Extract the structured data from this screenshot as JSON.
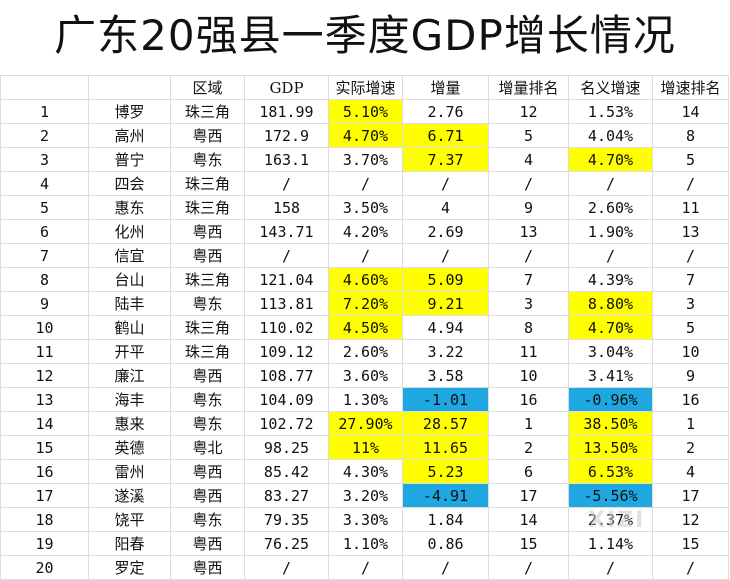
{
  "title": "广东20强县一季度GDP增长情况",
  "headers": [
    "",
    "",
    "区域",
    "GDP",
    "实际增速",
    "增量",
    "增量排名",
    "名义增速",
    "增速排名"
  ],
  "rows": [
    [
      "1",
      "博罗",
      "珠三角",
      "181.99",
      "5.10%",
      "2.76",
      "12",
      "1.53%",
      "14"
    ],
    [
      "2",
      "高州",
      "粤西",
      "172.9",
      "4.70%",
      "6.71",
      "5",
      "4.04%",
      "8"
    ],
    [
      "3",
      "普宁",
      "粤东",
      "163.1",
      "3.70%",
      "7.37",
      "4",
      "4.70%",
      "5"
    ],
    [
      "4",
      "四会",
      "珠三角",
      "/",
      "/",
      "/",
      "/",
      "/",
      "/"
    ],
    [
      "5",
      "惠东",
      "珠三角",
      "158",
      "3.50%",
      "4",
      "9",
      "2.60%",
      "11"
    ],
    [
      "6",
      "化州",
      "粤西",
      "143.71",
      "4.20%",
      "2.69",
      "13",
      "1.90%",
      "13"
    ],
    [
      "7",
      "信宜",
      "粤西",
      "/",
      "/",
      "/",
      "/",
      "/",
      "/"
    ],
    [
      "8",
      "台山",
      "珠三角",
      "121.04",
      "4.60%",
      "5.09",
      "7",
      "4.39%",
      "7"
    ],
    [
      "9",
      "陆丰",
      "粤东",
      "113.81",
      "7.20%",
      "9.21",
      "3",
      "8.80%",
      "3"
    ],
    [
      "10",
      "鹤山",
      "珠三角",
      "110.02",
      "4.50%",
      "4.94",
      "8",
      "4.70%",
      "5"
    ],
    [
      "11",
      "开平",
      "珠三角",
      "109.12",
      "2.60%",
      "3.22",
      "11",
      "3.04%",
      "10"
    ],
    [
      "12",
      "廉江",
      "粤西",
      "108.77",
      "3.60%",
      "3.58",
      "10",
      "3.41%",
      "9"
    ],
    [
      "13",
      "海丰",
      "粤东",
      "104.09",
      "1.30%",
      "-1.01",
      "16",
      "-0.96%",
      "16"
    ],
    [
      "14",
      "惠来",
      "粤东",
      "102.72",
      "27.90%",
      "28.57",
      "1",
      "38.50%",
      "1"
    ],
    [
      "15",
      "英德",
      "粤北",
      "98.25",
      "11%",
      "11.65",
      "2",
      "13.50%",
      "2"
    ],
    [
      "16",
      "雷州",
      "粤西",
      "85.42",
      "4.30%",
      "5.23",
      "6",
      "6.53%",
      "4"
    ],
    [
      "17",
      "遂溪",
      "粤西",
      "83.27",
      "3.20%",
      "-4.91",
      "17",
      "-5.56%",
      "17"
    ],
    [
      "18",
      "饶平",
      "粤东",
      "79.35",
      "3.30%",
      "1.84",
      "14",
      "2.37%",
      "12"
    ],
    [
      "19",
      "阳春",
      "粤西",
      "76.25",
      "1.10%",
      "0.86",
      "15",
      "1.14%",
      "15"
    ],
    [
      "20",
      "罗定",
      "粤西",
      "/",
      "/",
      "/",
      "/",
      "/",
      "/"
    ]
  ],
  "highlights": {
    "0": {
      "4": "yellow"
    },
    "1": {
      "4": "yellow",
      "5": "yellow"
    },
    "2": {
      "5": "yellow",
      "7": "yellow"
    },
    "7": {
      "4": "yellow",
      "5": "yellow"
    },
    "8": {
      "4": "yellow",
      "5": "yellow",
      "7": "yellow"
    },
    "9": {
      "4": "yellow",
      "7": "yellow"
    },
    "12": {
      "5": "blue",
      "7": "blue"
    },
    "13": {
      "4": "yellow",
      "5": "yellow",
      "7": "yellow"
    },
    "14": {
      "4": "yellow",
      "5": "yellow",
      "7": "yellow"
    },
    "15": {
      "5": "yellow",
      "7": "yellow"
    },
    "16": {
      "5": "blue",
      "7": "blue"
    }
  },
  "colors": {
    "yellow": "#ffff00",
    "blue": "#1ea7e1"
  },
  "watermark": "XIZI"
}
